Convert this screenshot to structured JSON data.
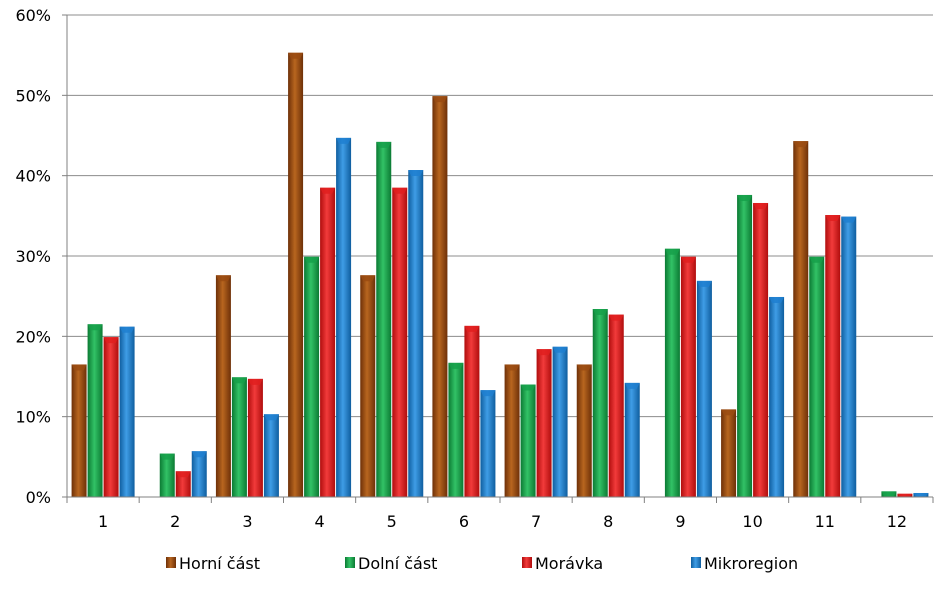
{
  "chart_data": {
    "type": "bar",
    "title": "",
    "xlabel": "",
    "ylabel": "",
    "ylim": [
      0,
      60
    ],
    "y_ticks": [
      "0%",
      "10%",
      "20%",
      "30%",
      "40%",
      "50%",
      "60%"
    ],
    "grid": true,
    "legend_placement": "bottom",
    "categories": [
      "1",
      "2",
      "3",
      "4",
      "5",
      "6",
      "7",
      "8",
      "9",
      "10",
      "11",
      "12"
    ],
    "series": [
      {
        "name": "Horní část",
        "color": "#9a4b12",
        "values": [
          16.5,
          0,
          27.6,
          55.3,
          27.6,
          49.9,
          16.5,
          16.5,
          0,
          10.9,
          44.3,
          0
        ]
      },
      {
        "name": "Dolní část",
        "color": "#16a04a",
        "values": [
          21.5,
          5.4,
          14.9,
          29.9,
          44.2,
          16.7,
          14.0,
          23.4,
          30.9,
          37.6,
          29.9,
          0.7
        ]
      },
      {
        "name": "Morávka",
        "color": "#e01f1f",
        "values": [
          19.9,
          3.2,
          14.7,
          38.5,
          38.5,
          21.3,
          18.4,
          22.7,
          29.9,
          36.6,
          35.1,
          0.4
        ]
      },
      {
        "name": "Mikroregion",
        "color": "#1e7fd0",
        "values": [
          21.2,
          5.7,
          10.3,
          44.7,
          40.7,
          13.3,
          18.7,
          14.2,
          26.9,
          24.9,
          34.9,
          0.5
        ]
      }
    ]
  }
}
